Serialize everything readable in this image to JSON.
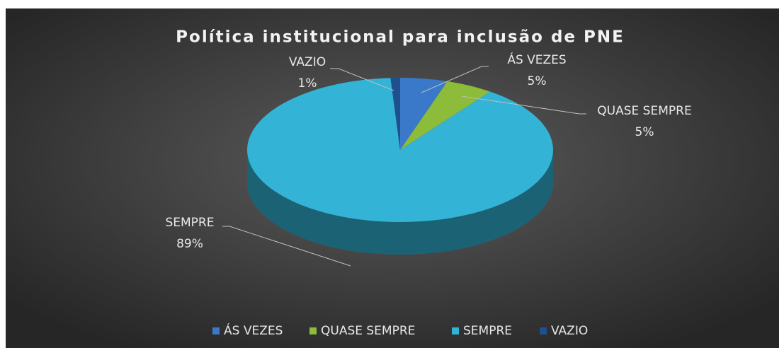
{
  "chart_data": {
    "type": "pie3d",
    "title": "Política institucional para inclusão de PNE",
    "categories": [
      "ÁS VEZES",
      "QUASE SEMPRE",
      "SEMPRE",
      "VAZIO"
    ],
    "values": [
      5,
      5,
      89,
      1
    ],
    "value_labels": [
      "5%",
      "5%",
      "89%",
      "1%"
    ],
    "colors": [
      "#3a78c9",
      "#8dbb3a",
      "#33b3d6",
      "#1f4f8f"
    ],
    "legend": "bottom"
  }
}
